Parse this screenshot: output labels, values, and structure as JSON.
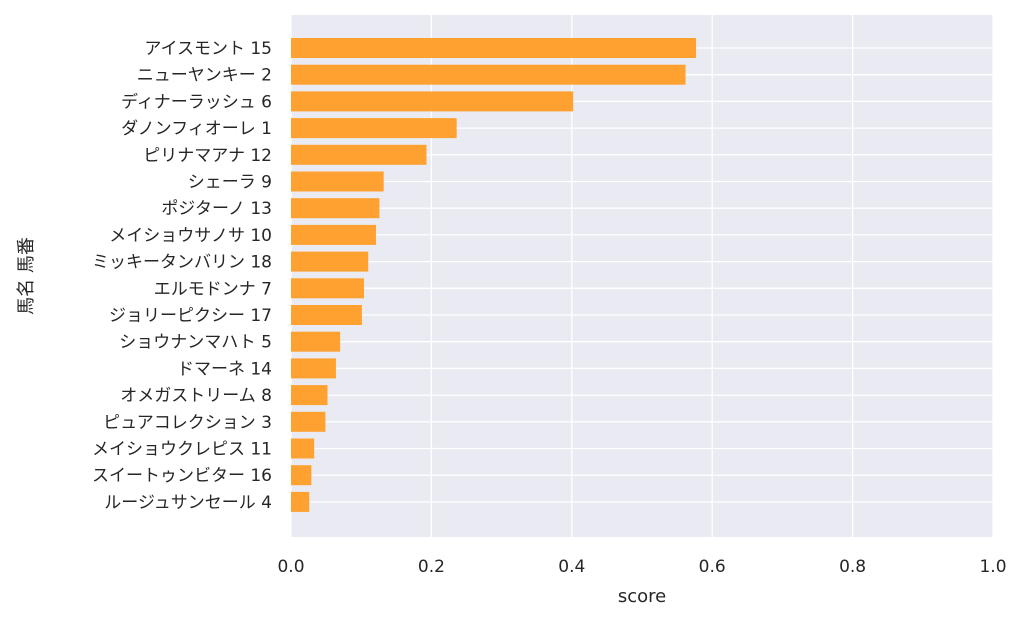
{
  "chart_data": {
    "type": "bar",
    "orientation": "horizontal",
    "title": "",
    "xlabel": "score",
    "ylabel": "馬名 馬番",
    "xlim": [
      0.0,
      1.0
    ],
    "xticks": [
      "0.0",
      "0.2",
      "0.4",
      "0.6",
      "0.8",
      "1.0"
    ],
    "grid": true,
    "bar_color": "#ff9a1f",
    "background_color": "#eaeaf2",
    "categories": [
      "アイスモント 15",
      "ニューヤンキー 2",
      "ディナーラッシュ 6",
      "ダノンフィオーレ 1",
      "ピリナマアナ 12",
      "シェーラ 9",
      "ポジターノ 13",
      "メイショウサノサ 10",
      "ミッキータンバリン 18",
      "エルモドンナ 7",
      "ジョリーピクシー 17",
      "ショウナンマハト 5",
      "ドマーネ 14",
      "オメガストリーム 8",
      "ピュアコレクション 3",
      "メイショウクレピス 11",
      "スイートゥンビター 16",
      "ルージュサンセール 4"
    ],
    "values": [
      0.577,
      0.562,
      0.402,
      0.236,
      0.193,
      0.132,
      0.126,
      0.121,
      0.11,
      0.104,
      0.101,
      0.07,
      0.064,
      0.052,
      0.049,
      0.033,
      0.029,
      0.026
    ]
  }
}
